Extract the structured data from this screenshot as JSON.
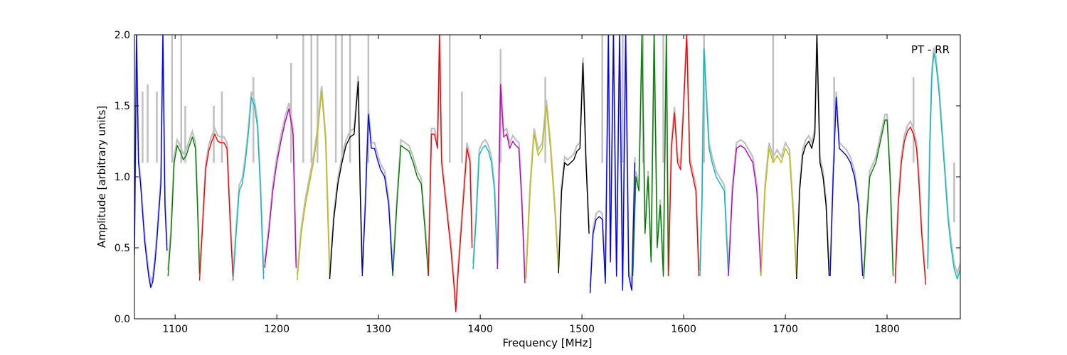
{
  "chart_data": {
    "type": "line",
    "title": "",
    "annotation": "PT - RR",
    "xlabel": "Frequency [MHz]",
    "ylabel": "Amplitude [arbitrary units]",
    "xlim": [
      1060,
      1872
    ],
    "ylim": [
      0,
      2.0
    ],
    "xticks": [
      1100,
      1200,
      1300,
      1400,
      1500,
      1600,
      1700,
      1800
    ],
    "yticks": [
      0.0,
      0.5,
      1.0,
      1.5,
      2.0
    ],
    "xtick_labels": [
      "1100",
      "1200",
      "1300",
      "1400",
      "1500",
      "1600",
      "1700",
      "1800"
    ],
    "ytick_labels": [
      "0.0",
      "0.5",
      "1.0",
      "1.5",
      "2.0"
    ],
    "grid": false,
    "background_series_color": "#c0c0c0",
    "background_spikes": [
      [
        1068,
        1.6
      ],
      [
        1073,
        1.65
      ],
      [
        1082,
        1.6
      ],
      [
        1097,
        2.0
      ],
      [
        1106,
        2.0
      ],
      [
        1110,
        1.5
      ],
      [
        1138,
        1.5
      ],
      [
        1146,
        1.6
      ],
      [
        1177,
        1.7
      ],
      [
        1214,
        1.8
      ],
      [
        1226,
        2.0
      ],
      [
        1234,
        2.0
      ],
      [
        1240,
        2.0
      ],
      [
        1258,
        2.0
      ],
      [
        1264,
        2.0
      ],
      [
        1272,
        2.0
      ],
      [
        1290,
        2.0
      ],
      [
        1370,
        2.0
      ],
      [
        1382,
        1.6
      ],
      [
        1420,
        1.9
      ],
      [
        1464,
        1.7
      ],
      [
        1520,
        2.0
      ],
      [
        1540,
        2.0
      ],
      [
        1560,
        2.0
      ],
      [
        1580,
        2.0
      ],
      [
        1620,
        2.0
      ],
      [
        1688,
        2.0
      ],
      [
        1748,
        1.7
      ],
      [
        1826,
        1.7
      ],
      [
        1866,
        0.68
      ]
    ],
    "series": [
      {
        "color": "#0000ff",
        "x": [
          1060,
          1062,
          1064,
          1066,
          1068,
          1070,
          1072,
          1074,
          1076,
          1078,
          1080,
          1082,
          1084,
          1086,
          1088,
          1090,
          1092
        ],
        "y": [
          0.45,
          2.0,
          1.1,
          0.95,
          0.75,
          0.55,
          0.42,
          0.3,
          0.22,
          0.26,
          0.38,
          0.55,
          0.75,
          0.95,
          2.0,
          0.8,
          0.48
        ]
      },
      {
        "color": "#008000",
        "x": [
          1093,
          1096,
          1099,
          1102,
          1105,
          1108,
          1111,
          1114,
          1117,
          1120,
          1122,
          1124
        ],
        "y": [
          0.3,
          0.6,
          1.1,
          1.22,
          1.18,
          1.12,
          1.15,
          1.22,
          1.28,
          1.2,
          0.8,
          0.32
        ]
      },
      {
        "color": "#ff0000",
        "x": [
          1124,
          1127,
          1130,
          1133,
          1136,
          1139,
          1142,
          1145,
          1148,
          1151,
          1154,
          1157
        ],
        "y": [
          0.27,
          0.65,
          1.05,
          1.18,
          1.25,
          1.3,
          1.25,
          1.24,
          1.24,
          1.2,
          0.7,
          0.27
        ]
      },
      {
        "color": "#00bfbf",
        "x": [
          1157,
          1160,
          1163,
          1166,
          1169,
          1172,
          1175,
          1178,
          1181,
          1184,
          1187
        ],
        "y": [
          0.28,
          0.6,
          0.9,
          0.95,
          1.1,
          1.3,
          1.56,
          1.5,
          1.35,
          0.9,
          0.28
        ]
      },
      {
        "color": "#bf00bf",
        "x": [
          1188,
          1192,
          1196,
          1200,
          1204,
          1208,
          1212,
          1216,
          1219
        ],
        "y": [
          0.36,
          0.6,
          0.9,
          1.1,
          1.25,
          1.38,
          1.48,
          1.3,
          0.36
        ]
      },
      {
        "color": "#bfbf00",
        "x": [
          1220,
          1224,
          1228,
          1232,
          1236,
          1240,
          1244,
          1248,
          1252
        ],
        "y": [
          0.27,
          0.6,
          0.8,
          0.95,
          1.1,
          1.3,
          1.6,
          1.25,
          0.28
        ]
      },
      {
        "color": "#000000",
        "x": [
          1252,
          1256,
          1260,
          1264,
          1268,
          1272,
          1276,
          1280,
          1282,
          1284
        ],
        "y": [
          0.28,
          0.7,
          0.95,
          1.1,
          1.22,
          1.28,
          1.3,
          1.67,
          0.9,
          0.32
        ]
      },
      {
        "color": "#0000ff",
        "x": [
          1284,
          1287,
          1290,
          1293,
          1296,
          1299,
          1302,
          1306,
          1310,
          1314
        ],
        "y": [
          0.3,
          0.8,
          1.44,
          1.2,
          1.2,
          1.12,
          1.05,
          1.0,
          0.8,
          0.3
        ]
      },
      {
        "color": "#008000",
        "x": [
          1314,
          1318,
          1322,
          1326,
          1330,
          1334,
          1338,
          1342,
          1346,
          1349
        ],
        "y": [
          0.3,
          0.8,
          1.22,
          1.2,
          1.18,
          1.1,
          1.0,
          0.95,
          0.6,
          0.3
        ]
      },
      {
        "color": "#ff0000",
        "x": [
          1349,
          1352,
          1355,
          1358,
          1360,
          1362,
          1365,
          1368,
          1371,
          1374,
          1376,
          1378,
          1381,
          1384,
          1387,
          1390,
          1392
        ],
        "y": [
          0.3,
          1.3,
          1.3,
          1.2,
          2.0,
          1.1,
          0.9,
          0.7,
          0.5,
          0.25,
          0.05,
          0.3,
          0.6,
          0.9,
          1.2,
          1.1,
          0.5
        ]
      },
      {
        "color": "#00bfbf",
        "x": [
          1393,
          1396,
          1399,
          1402,
          1405,
          1408,
          1411,
          1414,
          1417
        ],
        "y": [
          0.35,
          0.7,
          1.15,
          1.2,
          1.22,
          1.18,
          1.1,
          0.9,
          0.35
        ]
      },
      {
        "color": "#bf00bf",
        "x": [
          1417,
          1420,
          1423,
          1426,
          1429,
          1432,
          1435,
          1438,
          1441,
          1444
        ],
        "y": [
          0.35,
          1.65,
          1.28,
          1.3,
          1.2,
          1.25,
          1.22,
          1.2,
          0.8,
          0.25
        ]
      },
      {
        "color": "#bfbf00",
        "x": [
          1445,
          1449,
          1453,
          1457,
          1461,
          1465,
          1469,
          1473,
          1477
        ],
        "y": [
          0.28,
          0.9,
          1.3,
          1.15,
          1.2,
          1.5,
          1.2,
          0.8,
          0.32
        ]
      },
      {
        "color": "#000000",
        "x": [
          1477,
          1480,
          1483,
          1486,
          1489,
          1492,
          1495,
          1498,
          1501,
          1504,
          1507
        ],
        "y": [
          0.32,
          0.9,
          1.1,
          1.08,
          1.1,
          1.12,
          1.18,
          1.2,
          1.8,
          1.1,
          0.6
        ]
      },
      {
        "color": "#0000ff",
        "x": [
          1508,
          1511,
          1514,
          1517,
          1520,
          1523,
          1526,
          1528,
          1531,
          1534,
          1537,
          1540,
          1543,
          1546,
          1549,
          1552
        ],
        "y": [
          0.18,
          0.6,
          0.7,
          0.72,
          0.7,
          0.25,
          2.0,
          0.4,
          2.0,
          0.3,
          2.0,
          0.2,
          2.0,
          0.3,
          0.2,
          1.1
        ]
      },
      {
        "color": "#008000",
        "x": [
          1550,
          1553,
          1556,
          1559,
          1562,
          1565,
          1568,
          1571,
          1574,
          1577,
          1580,
          1583,
          1585
        ],
        "y": [
          0.3,
          1.0,
          0.9,
          2.0,
          0.6,
          1.0,
          0.4,
          2.0,
          0.5,
          0.8,
          0.3,
          2.0,
          0.3
        ]
      },
      {
        "color": "#ff0000",
        "x": [
          1585,
          1588,
          1591,
          1594,
          1597,
          1600,
          1603,
          1606,
          1609,
          1612,
          1615
        ],
        "y": [
          0.3,
          1.2,
          1.45,
          1.1,
          1.05,
          1.5,
          2.0,
          1.1,
          1.0,
          0.9,
          0.3
        ]
      },
      {
        "color": "#00bfbf",
        "x": [
          1616,
          1618,
          1620,
          1622,
          1625,
          1628,
          1632,
          1636,
          1640,
          1644
        ],
        "y": [
          0.3,
          0.8,
          1.9,
          1.6,
          1.2,
          1.1,
          1.0,
          0.95,
          0.9,
          0.3
        ]
      },
      {
        "color": "#bf00bf",
        "x": [
          1644,
          1648,
          1652,
          1656,
          1660,
          1664,
          1668,
          1672,
          1676
        ],
        "y": [
          0.3,
          0.9,
          1.2,
          1.22,
          1.2,
          1.15,
          1.1,
          0.9,
          0.3
        ]
      },
      {
        "color": "#bfbf00",
        "x": [
          1676,
          1680,
          1684,
          1688,
          1692,
          1696,
          1700,
          1704,
          1708,
          1711
        ],
        "y": [
          0.3,
          0.9,
          1.2,
          1.1,
          1.15,
          1.1,
          1.2,
          1.15,
          0.7,
          0.28
        ]
      },
      {
        "color": "#000000",
        "x": [
          1711,
          1714,
          1717,
          1720,
          1723,
          1726,
          1729,
          1731,
          1734,
          1737,
          1740,
          1743
        ],
        "y": [
          0.28,
          0.9,
          1.15,
          1.22,
          1.25,
          1.2,
          1.3,
          2.0,
          1.1,
          1.0,
          0.8,
          0.3
        ]
      },
      {
        "color": "#0000ff",
        "x": [
          1744,
          1747,
          1750,
          1753,
          1756,
          1760,
          1764,
          1768,
          1772,
          1776
        ],
        "y": [
          0.3,
          1.0,
          1.56,
          1.2,
          1.18,
          1.15,
          1.1,
          1.0,
          0.8,
          0.3
        ]
      },
      {
        "color": "#008000",
        "x": [
          1777,
          1780,
          1783,
          1786,
          1789,
          1792,
          1795,
          1798,
          1800,
          1803,
          1806
        ],
        "y": [
          0.28,
          0.7,
          1.0,
          1.05,
          1.1,
          1.2,
          1.3,
          1.4,
          1.4,
          1.0,
          0.3
        ]
      },
      {
        "color": "#ff0000",
        "x": [
          1808,
          1811,
          1814,
          1817,
          1820,
          1823,
          1826,
          1829,
          1831,
          1834,
          1838
        ],
        "y": [
          0.25,
          0.8,
          1.1,
          1.25,
          1.32,
          1.35,
          1.3,
          1.2,
          1.0,
          0.6,
          0.24
        ]
      },
      {
        "color": "#00bfbf",
        "x": [
          1840,
          1842,
          1844,
          1846,
          1848,
          1851,
          1854,
          1857,
          1860,
          1863,
          1866,
          1869,
          1872
        ],
        "y": [
          0.35,
          1.2,
          1.7,
          1.87,
          1.8,
          1.6,
          1.3,
          1.0,
          0.7,
          0.5,
          0.35,
          0.28,
          0.35
        ]
      }
    ]
  }
}
